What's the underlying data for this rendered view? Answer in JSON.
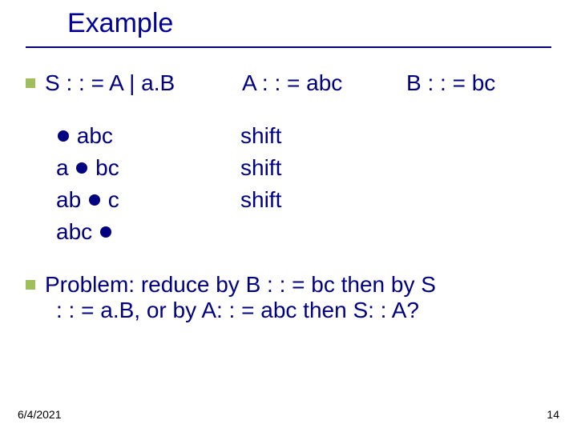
{
  "title": "Example",
  "grammar": {
    "s": "S : : = A | a.B",
    "a": "A : : = abc",
    "b": "B : : = bc"
  },
  "rows": [
    {
      "before": "",
      "after": "abc",
      "action": "shift"
    },
    {
      "before": "a",
      "after": "bc",
      "action": "shift"
    },
    {
      "before": "ab",
      "after": "c",
      "action": "shift"
    },
    {
      "before": "abc",
      "after": "",
      "action": ""
    }
  ],
  "problem": {
    "line1": "Problem: reduce by B : : = bc then by    S",
    "line2": ": : = a.B, or by A: : = abc then S: : A?"
  },
  "footer": {
    "date": "6/4/2021",
    "page": "14"
  },
  "colors": {
    "text": "#000080",
    "bullet": "#9fbf5f",
    "rule": "#000080",
    "background": "#ffffff",
    "footer": "#000000"
  }
}
